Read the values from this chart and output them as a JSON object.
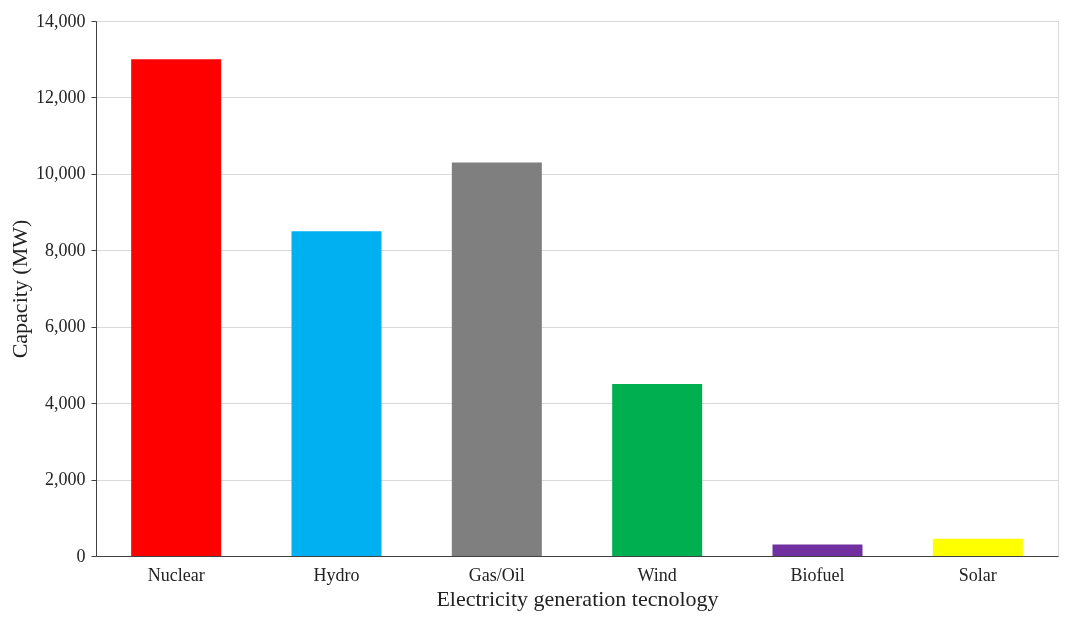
{
  "chart_data": {
    "type": "bar",
    "xlabel": "Electricity generation tecnology",
    "ylabel": "Capacity (MW)",
    "categories": [
      "Nuclear",
      "Hydro",
      "Gas/Oil",
      "Wind",
      "Biofuel",
      "Solar"
    ],
    "values": [
      13000,
      8500,
      10300,
      4500,
      300,
      450
    ],
    "colors": [
      "#ff0000",
      "#00b0f0",
      "#7f7f7f",
      "#00b050",
      "#7030a0",
      "#ffff00"
    ],
    "ylim": [
      0,
      14000
    ],
    "yticks": [
      {
        "value": 0,
        "label": "0"
      },
      {
        "value": 2000,
        "label": "2,000"
      },
      {
        "value": 4000,
        "label": "4,000"
      },
      {
        "value": 6000,
        "label": "6,000"
      },
      {
        "value": 8000,
        "label": "8,000"
      },
      {
        "value": 10000,
        "label": "10,000"
      },
      {
        "value": 12000,
        "label": "12,000"
      },
      {
        "value": 14000,
        "label": "14,000"
      }
    ],
    "grid": "y"
  }
}
